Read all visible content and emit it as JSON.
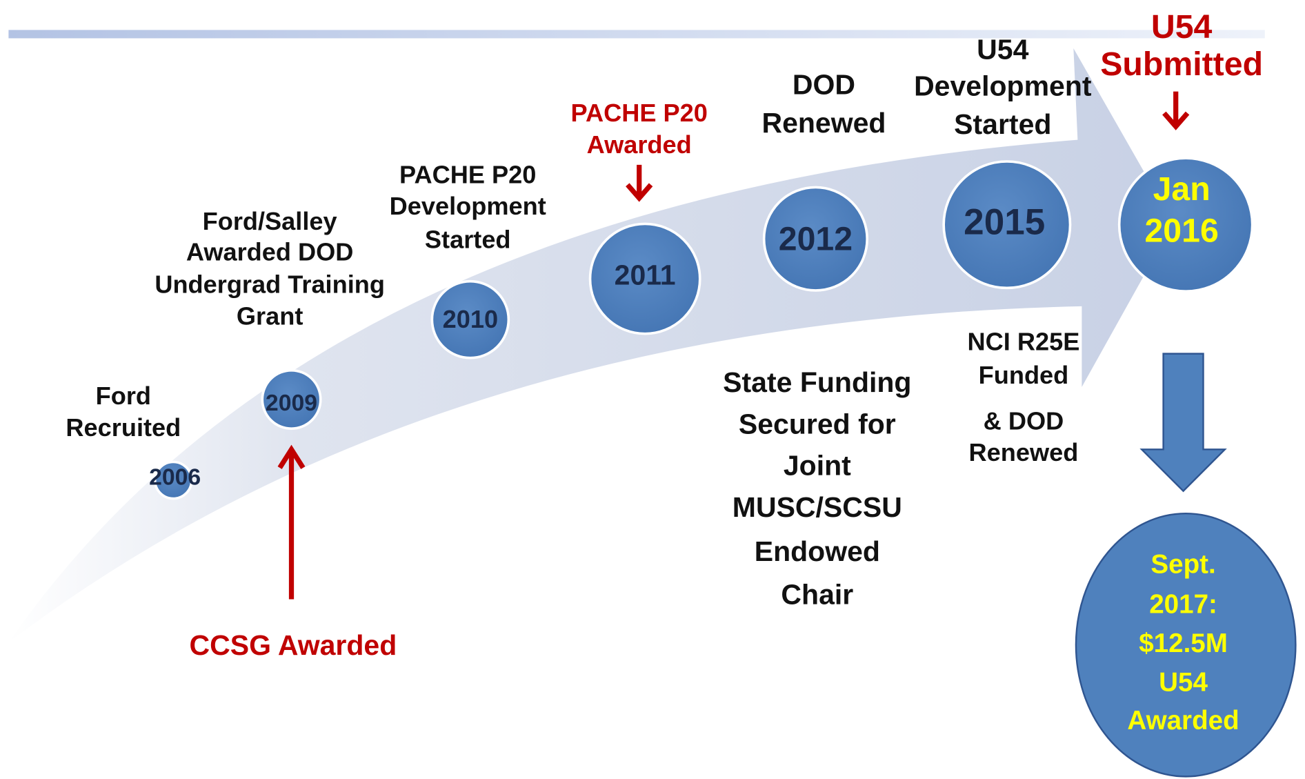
{
  "milestones": [
    {
      "year": "2006",
      "above": [
        "Ford",
        "Recruited"
      ]
    },
    {
      "year": "2009",
      "above": [
        "Ford/Salley",
        "Awarded DOD",
        "Undergrad Training",
        "Grant"
      ],
      "below": [
        "CCSG Awarded"
      ]
    },
    {
      "year": "2010",
      "above": [
        "PACHE P20",
        "Development",
        "Started"
      ]
    },
    {
      "year": "2011",
      "above": [
        "PACHE P20",
        "Awarded"
      ]
    },
    {
      "year": "2012",
      "above": [
        "DOD",
        "Renewed"
      ],
      "below": [
        "State Funding",
        "Secured for",
        "Joint",
        "MUSC/SCSU",
        "Endowed",
        "Chair"
      ]
    },
    {
      "year": "2015",
      "above": [
        "U54",
        "Development",
        "Started"
      ],
      "below": [
        "NCI R25E",
        "Funded",
        "& DOD",
        "Renewed"
      ]
    },
    {
      "year": [
        "Jan",
        "2016"
      ],
      "above": [
        "U54",
        "Submitted"
      ]
    }
  ],
  "outcome": [
    "Sept.",
    "2017:",
    "$12.5M",
    "U54",
    "Awarded"
  ]
}
